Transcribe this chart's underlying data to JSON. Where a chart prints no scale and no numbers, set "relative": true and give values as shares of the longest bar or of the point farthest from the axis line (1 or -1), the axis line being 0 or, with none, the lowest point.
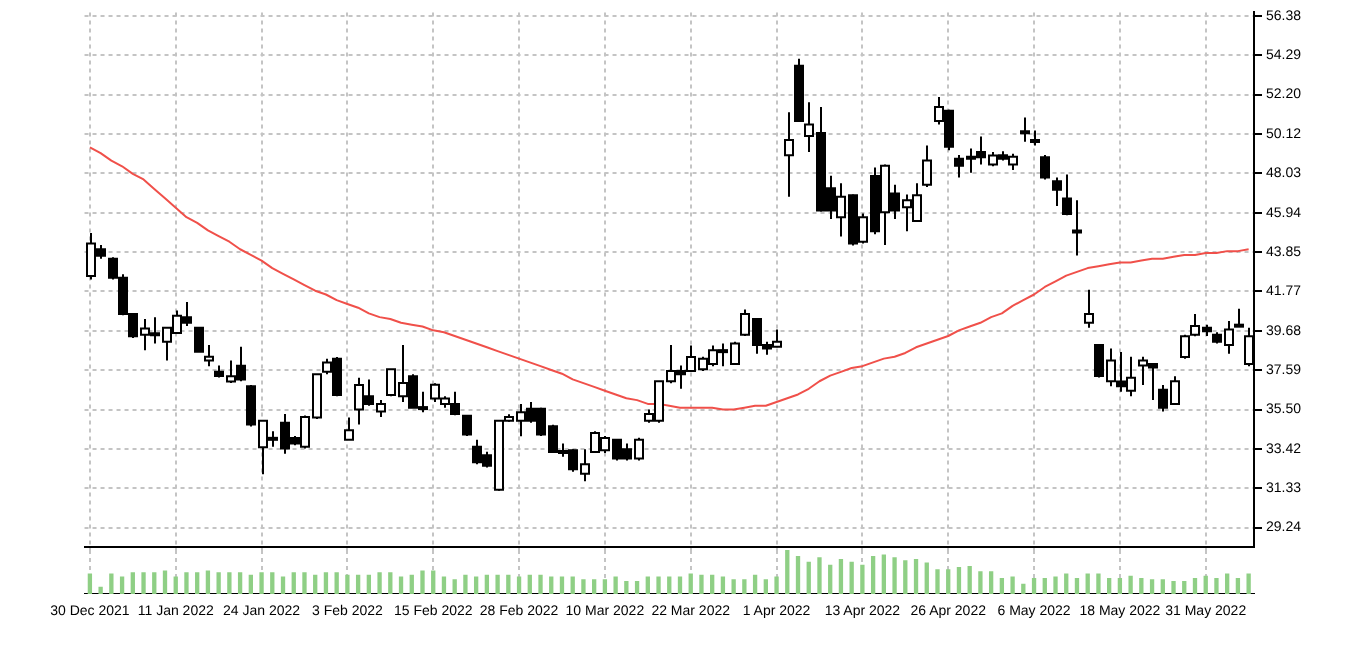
{
  "chart_data": [
    {
      "type": "candlestick",
      "grid": true,
      "categories": [
        "30 Dec 2021",
        null,
        null,
        null,
        null,
        null,
        null,
        null,
        "11 Jan 2022",
        null,
        null,
        null,
        null,
        null,
        null,
        null,
        "24 Jan 2022",
        null,
        null,
        null,
        null,
        null,
        null,
        null,
        "3 Feb 2022",
        null,
        null,
        null,
        null,
        null,
        null,
        null,
        "15 Feb 2022",
        null,
        null,
        null,
        null,
        null,
        null,
        null,
        "28 Feb 2022",
        null,
        null,
        null,
        null,
        null,
        null,
        null,
        "10 Mar 2022",
        null,
        null,
        null,
        null,
        null,
        null,
        null,
        "22 Mar 2022",
        null,
        null,
        null,
        null,
        null,
        null,
        null,
        "1 Apr 2022",
        null,
        null,
        null,
        null,
        null,
        null,
        null,
        "13 Apr 2022",
        null,
        null,
        null,
        null,
        null,
        null,
        null,
        "26 Apr 2022",
        null,
        null,
        null,
        null,
        null,
        null,
        null,
        "6 May 2022",
        null,
        null,
        null,
        null,
        null,
        null,
        null,
        "18 May 2022",
        null,
        null,
        null,
        null,
        null,
        null,
        null,
        "31 May 2022",
        null,
        null,
        null,
        null
      ],
      "ohlc": [
        [
          42.58,
          44.86,
          42.4,
          44.3
        ],
        [
          44.0,
          44.22,
          43.5,
          43.66
        ],
        [
          43.5,
          43.58,
          42.4,
          42.49
        ],
        [
          42.49,
          42.67,
          40.5,
          40.57
        ],
        [
          40.57,
          40.6,
          39.3,
          39.38
        ],
        [
          39.47,
          40.3,
          38.65,
          39.8
        ],
        [
          39.5,
          40.39,
          39.0,
          39.55
        ],
        [
          39.1,
          39.84,
          38.1,
          39.84
        ],
        [
          39.56,
          40.75,
          39.56,
          40.48
        ],
        [
          40.4,
          41.2,
          39.93,
          40.1
        ],
        [
          39.84,
          39.84,
          38.56,
          38.56
        ],
        [
          38.1,
          38.92,
          37.8,
          38.3
        ],
        [
          37.5,
          37.83,
          37.2,
          37.28
        ],
        [
          36.99,
          38.1,
          36.91,
          37.27
        ],
        [
          37.82,
          38.83,
          37.0,
          37.09
        ],
        [
          36.73,
          36.8,
          34.6,
          34.71
        ],
        [
          33.5,
          34.9,
          32.07,
          34.9
        ],
        [
          33.99,
          34.35,
          33.53,
          34.0
        ],
        [
          34.8,
          35.27,
          33.16,
          33.43
        ],
        [
          33.99,
          34.1,
          33.6,
          33.7
        ],
        [
          33.53,
          35.18,
          33.44,
          35.1
        ],
        [
          35.08,
          37.37,
          35.0,
          37.37
        ],
        [
          37.5,
          38.19,
          37.37,
          38.0
        ],
        [
          38.19,
          38.28,
          36.2,
          36.27
        ],
        [
          33.9,
          35.08,
          33.9,
          34.4
        ],
        [
          35.5,
          37.18,
          34.71,
          36.8
        ],
        [
          36.2,
          37.09,
          35.7,
          35.8
        ],
        [
          35.4,
          36.0,
          35.1,
          35.8
        ],
        [
          36.27,
          37.64,
          36.2,
          37.64
        ],
        [
          36.2,
          38.92,
          35.9,
          36.91
        ],
        [
          37.27,
          37.37,
          35.6,
          35.6
        ],
        [
          35.63,
          36.45,
          35.36,
          35.6
        ],
        [
          36.09,
          36.9,
          35.9,
          36.82
        ],
        [
          35.8,
          36.2,
          35.6,
          36.09
        ],
        [
          35.8,
          36.45,
          35.2,
          35.27
        ],
        [
          35.17,
          35.2,
          34.1,
          34.17
        ],
        [
          33.53,
          33.9,
          32.6,
          32.7
        ],
        [
          33.07,
          33.26,
          32.43,
          32.52
        ],
        [
          31.24,
          34.9,
          31.2,
          34.9
        ],
        [
          34.9,
          35.25,
          34.85,
          35.1
        ],
        [
          34.9,
          35.8,
          34.08,
          35.36
        ],
        [
          35.54,
          35.9,
          34.8,
          34.9
        ],
        [
          35.54,
          35.6,
          34.1,
          34.17
        ],
        [
          34.62,
          34.7,
          33.2,
          33.25
        ],
        [
          33.3,
          33.7,
          33.0,
          33.2
        ],
        [
          33.34,
          33.4,
          32.2,
          32.34
        ],
        [
          32.1,
          33.4,
          31.7,
          32.6
        ],
        [
          33.25,
          34.35,
          33.2,
          34.26
        ],
        [
          33.34,
          34.1,
          33.2,
          33.99
        ],
        [
          33.9,
          33.9,
          32.8,
          32.9
        ],
        [
          33.4,
          33.7,
          32.8,
          32.9
        ],
        [
          32.9,
          34.0,
          32.8,
          33.9
        ],
        [
          34.9,
          35.5,
          34.8,
          35.27
        ],
        [
          34.9,
          37.0,
          34.8,
          37.0
        ],
        [
          37.0,
          38.92,
          36.9,
          37.55
        ],
        [
          37.55,
          37.83,
          36.6,
          37.37
        ],
        [
          37.55,
          38.9,
          37.5,
          38.28
        ],
        [
          37.64,
          38.3,
          37.55,
          38.2
        ],
        [
          37.92,
          38.9,
          37.8,
          38.65
        ],
        [
          38.6,
          39.0,
          37.8,
          38.65
        ],
        [
          37.92,
          39.1,
          37.9,
          39.0
        ],
        [
          39.47,
          40.8,
          39.4,
          40.57
        ],
        [
          40.3,
          40.3,
          38.46,
          38.92
        ],
        [
          38.92,
          39.1,
          38.4,
          38.74
        ],
        [
          38.83,
          39.74,
          38.8,
          39.1
        ],
        [
          48.98,
          51.26,
          46.78,
          49.8
        ],
        [
          53.73,
          54.1,
          50.8,
          50.8
        ],
        [
          50.0,
          51.8,
          49.16,
          50.62
        ],
        [
          50.16,
          51.54,
          46.0,
          46.05
        ],
        [
          47.24,
          47.9,
          45.6,
          46.05
        ],
        [
          45.7,
          47.5,
          44.68,
          46.78
        ],
        [
          46.87,
          46.9,
          44.2,
          44.3
        ],
        [
          44.4,
          45.9,
          44.3,
          45.7
        ],
        [
          47.88,
          48.34,
          44.8,
          44.95
        ],
        [
          45.96,
          48.5,
          44.22,
          48.43
        ],
        [
          46.96,
          47.42,
          45.6,
          46.05
        ],
        [
          46.23,
          46.9,
          44.95,
          46.6
        ],
        [
          45.5,
          47.5,
          45.5,
          46.87
        ],
        [
          47.42,
          49.5,
          47.3,
          48.7
        ],
        [
          50.8,
          52.08,
          50.62,
          51.54
        ],
        [
          51.35,
          51.4,
          49.25,
          49.43
        ],
        [
          48.8,
          49.0,
          47.8,
          48.43
        ],
        [
          48.9,
          49.34,
          48.06,
          48.85
        ],
        [
          49.16,
          49.98,
          48.5,
          48.88
        ],
        [
          48.5,
          49.16,
          48.4,
          48.97
        ],
        [
          48.98,
          49.2,
          48.7,
          48.8
        ],
        [
          48.5,
          49.07,
          48.2,
          48.9
        ],
        [
          50.26,
          50.99,
          49.7,
          50.2
        ],
        [
          49.8,
          50.3,
          49.5,
          49.7
        ],
        [
          48.88,
          49.0,
          47.7,
          47.8
        ],
        [
          47.6,
          47.8,
          46.3,
          47.15
        ],
        [
          46.69,
          47.97,
          45.8,
          45.87
        ],
        [
          45.0,
          46.6,
          43.67,
          44.9
        ],
        [
          40.1,
          41.85,
          39.84,
          40.57
        ],
        [
          38.92,
          38.92,
          37.2,
          37.28
        ],
        [
          37.0,
          38.74,
          36.73,
          38.1
        ],
        [
          36.99,
          38.55,
          36.45,
          36.73
        ],
        [
          36.5,
          38.3,
          36.2,
          37.18
        ],
        [
          37.83,
          38.3,
          36.8,
          38.1
        ],
        [
          37.92,
          37.92,
          36.0,
          37.73
        ],
        [
          36.55,
          36.8,
          35.4,
          35.6
        ],
        [
          35.8,
          37.27,
          35.8,
          37.0
        ],
        [
          38.28,
          39.47,
          38.2,
          39.38
        ],
        [
          39.47,
          40.57,
          39.38,
          39.93
        ],
        [
          39.84,
          40.0,
          39.4,
          39.65
        ],
        [
          39.47,
          39.6,
          39.0,
          39.1
        ],
        [
          38.92,
          40.2,
          38.46,
          39.74
        ],
        [
          40.0,
          40.84,
          39.9,
          39.9
        ],
        [
          37.92,
          39.84,
          37.8,
          39.38
        ]
      ],
      "series": [
        {
          "type": "line",
          "color": "#f0504a",
          "values": [
            49.4,
            49.1,
            48.7,
            48.4,
            48.0,
            47.7,
            47.2,
            46.7,
            46.2,
            45.7,
            45.4,
            45.0,
            44.7,
            44.4,
            44.0,
            43.7,
            43.4,
            43.0,
            42.7,
            42.4,
            42.1,
            41.8,
            41.6,
            41.3,
            41.1,
            40.9,
            40.6,
            40.4,
            40.3,
            40.1,
            40.0,
            39.9,
            39.7,
            39.6,
            39.4,
            39.2,
            39.0,
            38.8,
            38.6,
            38.4,
            38.2,
            38.0,
            37.8,
            37.6,
            37.4,
            37.1,
            36.9,
            36.7,
            36.5,
            36.3,
            36.1,
            36.0,
            35.8,
            35.8,
            35.7,
            35.6,
            35.6,
            35.6,
            35.6,
            35.5,
            35.5,
            35.6,
            35.7,
            35.7,
            35.9,
            36.1,
            36.3,
            36.6,
            37.0,
            37.3,
            37.5,
            37.7,
            37.8,
            38.0,
            38.2,
            38.3,
            38.5,
            38.8,
            39.0,
            39.2,
            39.4,
            39.7,
            39.9,
            40.1,
            40.4,
            40.6,
            41.0,
            41.3,
            41.6,
            42.0,
            42.3,
            42.6,
            42.8,
            43.0,
            43.1,
            43.2,
            43.3,
            43.3,
            43.4,
            43.5,
            43.5,
            43.6,
            43.7,
            43.7,
            43.8,
            43.8,
            43.9,
            43.9,
            44.0
          ]
        }
      ],
      "ylim": [
        28.2,
        56.56
      ],
      "yticks": [
        56.38,
        54.29,
        {
          "value": 52.2,
          "label": "52.20"
        },
        50.12,
        48.03,
        45.94,
        43.85,
        41.77,
        39.68,
        37.59,
        {
          "value": 35.5,
          "label": "35.50"
        },
        33.42,
        31.33,
        29.24
      ]
    },
    {
      "type": "bar",
      "relative": true,
      "tick_labels": false,
      "grid": "x",
      "color": "#8fcf85",
      "categories": [
        null,
        null,
        null,
        null,
        null,
        null,
        null,
        null,
        null,
        null,
        null,
        null,
        null,
        null,
        null,
        null,
        null,
        null,
        null,
        null,
        null,
        null,
        null,
        null,
        null,
        null,
        null,
        null,
        null,
        null,
        null,
        null,
        null,
        null,
        null,
        null,
        null,
        null,
        null,
        null,
        null,
        null,
        null,
        null,
        null,
        null,
        null,
        null,
        null,
        null,
        null,
        null,
        null,
        null,
        null,
        null,
        null,
        null,
        null,
        null,
        null,
        null,
        null,
        null,
        null,
        null,
        null,
        null,
        null,
        null,
        null,
        null,
        null,
        null,
        null,
        null,
        null,
        null,
        null,
        null,
        null,
        null,
        null,
        null,
        null,
        null,
        null,
        null,
        null,
        null,
        null,
        null,
        null,
        null,
        null,
        null,
        null,
        null,
        null,
        null,
        null,
        null,
        null,
        null,
        null,
        null,
        null,
        null,
        null
      ],
      "values": [
        0.45,
        0.15,
        0.45,
        0.38,
        0.48,
        0.48,
        0.48,
        0.52,
        0.38,
        0.48,
        0.48,
        0.52,
        0.48,
        0.48,
        0.48,
        0.42,
        0.48,
        0.48,
        0.38,
        0.48,
        0.48,
        0.42,
        0.48,
        0.48,
        0.42,
        0.42,
        0.42,
        0.48,
        0.48,
        0.38,
        0.42,
        0.52,
        0.52,
        0.38,
        0.32,
        0.42,
        0.38,
        0.42,
        0.42,
        0.42,
        0.38,
        0.42,
        0.42,
        0.38,
        0.38,
        0.38,
        0.32,
        0.32,
        0.32,
        0.38,
        0.28,
        0.28,
        0.38,
        0.38,
        0.38,
        0.38,
        0.45,
        0.42,
        0.42,
        0.38,
        0.32,
        0.32,
        0.42,
        0.32,
        0.38,
        1.0,
        0.85,
        0.72,
        0.82,
        0.65,
        0.78,
        0.72,
        0.65,
        0.85,
        0.88,
        0.82,
        0.75,
        0.78,
        0.7,
        0.55,
        0.55,
        0.6,
        0.62,
        0.5,
        0.5,
        0.35,
        0.38,
        0.22,
        0.35,
        0.35,
        0.38,
        0.45,
        0.35,
        0.45,
        0.45,
        0.35,
        0.35,
        0.4,
        0.35,
        0.32,
        0.32,
        0.28,
        0.28,
        0.35,
        0.4,
        0.35,
        0.45,
        0.35,
        0.45
      ]
    }
  ]
}
